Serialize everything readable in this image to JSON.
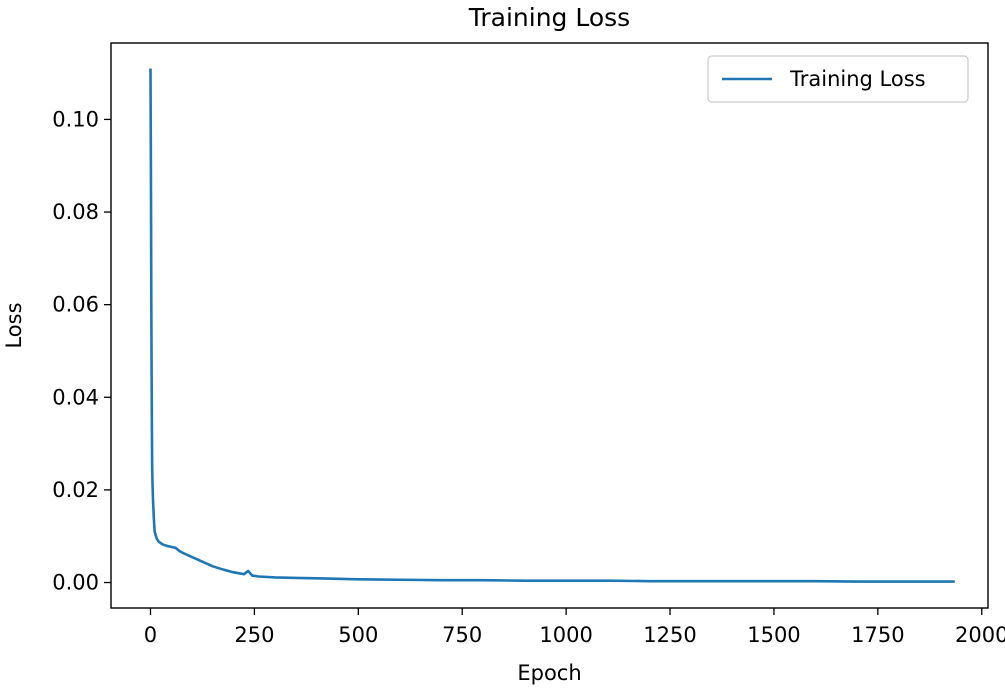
{
  "chart_data": {
    "type": "line",
    "title": "Training Loss",
    "xlabel": "Epoch",
    "ylabel": "Loss",
    "xlim": [
      -95,
      2015
    ],
    "ylim": [
      -0.0055,
      0.1165
    ],
    "xticks": [
      0,
      250,
      500,
      750,
      1000,
      1250,
      1500,
      1750,
      2000
    ],
    "xtick_labels": [
      "0",
      "250",
      "500",
      "750",
      "1000",
      "1250",
      "1500",
      "1750",
      "2000"
    ],
    "yticks": [
      0.0,
      0.02,
      0.04,
      0.06,
      0.08,
      0.1
    ],
    "ytick_labels": [
      "0.00",
      "0.02",
      "0.04",
      "0.06",
      "0.08",
      "0.10"
    ],
    "grid": false,
    "legend": {
      "position": "top-right",
      "entries": [
        "Training Loss"
      ]
    },
    "series": [
      {
        "name": "Training Loss",
        "color": "#1f77b4",
        "x": [
          0,
          1,
          2,
          3,
          4,
          5,
          6,
          8,
          10,
          15,
          20,
          30,
          40,
          50,
          60,
          70,
          80,
          100,
          125,
          150,
          175,
          200,
          225,
          235,
          245,
          260,
          300,
          350,
          400,
          450,
          500,
          600,
          700,
          800,
          900,
          1000,
          1100,
          1200,
          1300,
          1400,
          1500,
          1600,
          1700,
          1800,
          1900,
          1935
        ],
        "y": [
          0.111,
          0.09,
          0.06,
          0.04,
          0.025,
          0.021,
          0.018,
          0.014,
          0.011,
          0.0095,
          0.0088,
          0.0082,
          0.0079,
          0.0077,
          0.0075,
          0.0068,
          0.0063,
          0.0055,
          0.0045,
          0.0035,
          0.0028,
          0.0022,
          0.0018,
          0.0025,
          0.0015,
          0.0013,
          0.0011,
          0.001,
          0.0009,
          0.0008,
          0.0007,
          0.0006,
          0.0005,
          0.0005,
          0.0004,
          0.0004,
          0.0004,
          0.0003,
          0.0003,
          0.0003,
          0.0003,
          0.0003,
          0.0002,
          0.0002,
          0.0002,
          0.0002
        ]
      }
    ]
  }
}
